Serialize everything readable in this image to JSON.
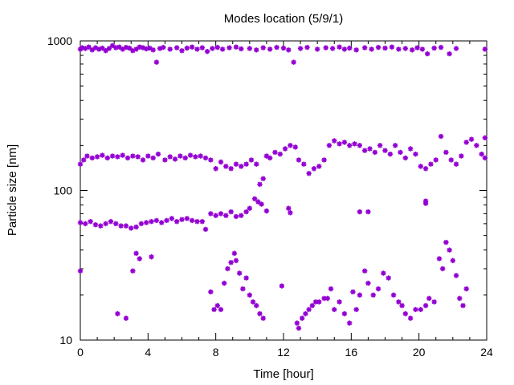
{
  "chart_data": {
    "type": "scatter",
    "title": "Modes location (5/9/1)",
    "xlabel": "Time [hour]",
    "ylabel": "Particle size [nm]",
    "xlim": [
      0,
      24
    ],
    "ylim": [
      10,
      1000
    ],
    "yscale": "log",
    "grid": false,
    "marker_color": "#9400d3",
    "marker": "asterisk",
    "xticks": [
      0,
      4,
      8,
      12,
      16,
      20,
      24
    ],
    "yticks": [
      10,
      100,
      1000
    ],
    "mode_bands": [
      {
        "x": [
          0,
          24
        ],
        "y": [
          880,
          720
        ]
      },
      {
        "x": [
          0,
          24
        ],
        "y": [
          165,
          190
        ]
      },
      {
        "x": [
          0,
          10.6
        ],
        "y": [
          61,
          82
        ]
      },
      {
        "x": [
          7.7,
          24
        ],
        "y": [
          13,
          40
        ]
      }
    ],
    "series": [
      {
        "values_note": "",
        "points": [
          [
            0.0,
            880
          ],
          [
            0.1,
            900
          ],
          [
            0.3,
            890
          ],
          [
            0.5,
            910
          ],
          [
            0.7,
            870
          ],
          [
            0.9,
            900
          ],
          [
            1.1,
            880
          ],
          [
            1.3,
            895
          ],
          [
            1.5,
            860
          ],
          [
            1.7,
            890
          ],
          [
            1.9,
            930
          ],
          [
            2.1,
            900
          ],
          [
            2.3,
            910
          ],
          [
            2.5,
            880
          ],
          [
            2.7,
            905
          ],
          [
            2.9,
            895
          ],
          [
            3.1,
            860
          ],
          [
            3.3,
            880
          ],
          [
            3.5,
            910
          ],
          [
            3.7,
            900
          ],
          [
            3.9,
            885
          ],
          [
            4.1,
            895
          ],
          [
            4.3,
            870
          ],
          [
            4.5,
            720
          ],
          [
            4.7,
            890
          ],
          [
            4.9,
            905
          ],
          [
            5.3,
            880
          ],
          [
            5.7,
            900
          ],
          [
            6.0,
            860
          ],
          [
            6.3,
            895
          ],
          [
            6.6,
            910
          ],
          [
            6.9,
            880
          ],
          [
            7.2,
            900
          ],
          [
            7.5,
            850
          ],
          [
            7.8,
            890
          ],
          [
            8.1,
            905
          ],
          [
            8.4,
            880
          ],
          [
            8.8,
            900
          ],
          [
            9.2,
            910
          ],
          [
            9.5,
            885
          ],
          [
            10.0,
            890
          ],
          [
            10.4,
            870
          ],
          [
            10.8,
            900
          ],
          [
            11.2,
            880
          ],
          [
            11.6,
            905
          ],
          [
            12.0,
            895
          ],
          [
            12.3,
            870
          ],
          [
            12.6,
            720
          ],
          [
            13.0,
            890
          ],
          [
            13.4,
            905
          ],
          [
            14.0,
            880
          ],
          [
            14.5,
            900
          ],
          [
            14.9,
            890
          ],
          [
            15.3,
            910
          ],
          [
            15.6,
            880
          ],
          [
            15.9,
            895
          ],
          [
            16.3,
            870
          ],
          [
            16.8,
            900
          ],
          [
            17.2,
            880
          ],
          [
            17.6,
            905
          ],
          [
            18.0,
            895
          ],
          [
            18.4,
            910
          ],
          [
            18.8,
            880
          ],
          [
            19.2,
            890
          ],
          [
            19.6,
            870
          ],
          [
            19.9,
            900
          ],
          [
            20.2,
            880
          ],
          [
            20.5,
            820
          ],
          [
            20.9,
            895
          ],
          [
            21.3,
            905
          ],
          [
            21.8,
            820
          ],
          [
            22.2,
            890
          ],
          [
            23.9,
            880
          ],
          [
            0.0,
            150
          ],
          [
            0.2,
            160
          ],
          [
            0.4,
            170
          ],
          [
            0.7,
            165
          ],
          [
            1.0,
            168
          ],
          [
            1.3,
            172
          ],
          [
            1.6,
            165
          ],
          [
            1.9,
            170
          ],
          [
            2.2,
            168
          ],
          [
            2.5,
            172
          ],
          [
            2.8,
            165
          ],
          [
            3.1,
            170
          ],
          [
            3.4,
            168
          ],
          [
            3.7,
            160
          ],
          [
            4.0,
            170
          ],
          [
            4.3,
            165
          ],
          [
            4.6,
            175
          ],
          [
            5.0,
            160
          ],
          [
            5.3,
            168
          ],
          [
            5.6,
            162
          ],
          [
            5.9,
            170
          ],
          [
            6.2,
            165
          ],
          [
            6.5,
            172
          ],
          [
            6.8,
            168
          ],
          [
            7.1,
            170
          ],
          [
            7.4,
            165
          ],
          [
            7.7,
            160
          ],
          [
            8.0,
            140
          ],
          [
            8.3,
            155
          ],
          [
            8.6,
            145
          ],
          [
            8.9,
            140
          ],
          [
            9.2,
            150
          ],
          [
            9.5,
            145
          ],
          [
            9.8,
            150
          ],
          [
            10.1,
            160
          ],
          [
            10.4,
            150
          ],
          [
            10.6,
            110
          ],
          [
            10.8,
            120
          ],
          [
            11.0,
            170
          ],
          [
            11.2,
            165
          ],
          [
            11.5,
            180
          ],
          [
            11.8,
            175
          ],
          [
            12.1,
            190
          ],
          [
            12.4,
            200
          ],
          [
            12.7,
            195
          ],
          [
            12.9,
            160
          ],
          [
            13.2,
            150
          ],
          [
            13.5,
            130
          ],
          [
            13.8,
            140
          ],
          [
            14.1,
            145
          ],
          [
            14.4,
            160
          ],
          [
            14.7,
            200
          ],
          [
            15.0,
            215
          ],
          [
            15.3,
            205
          ],
          [
            15.6,
            210
          ],
          [
            15.9,
            200
          ],
          [
            16.2,
            205
          ],
          [
            16.5,
            200
          ],
          [
            16.8,
            185
          ],
          [
            17.1,
            190
          ],
          [
            17.4,
            180
          ],
          [
            17.7,
            200
          ],
          [
            18.0,
            185
          ],
          [
            18.3,
            175
          ],
          [
            18.6,
            200
          ],
          [
            18.9,
            180
          ],
          [
            19.2,
            165
          ],
          [
            19.5,
            190
          ],
          [
            19.8,
            175
          ],
          [
            20.1,
            145
          ],
          [
            20.4,
            140
          ],
          [
            20.7,
            150
          ],
          [
            21.0,
            160
          ],
          [
            21.3,
            230
          ],
          [
            21.6,
            180
          ],
          [
            21.9,
            160
          ],
          [
            22.2,
            150
          ],
          [
            22.5,
            170
          ],
          [
            22.8,
            210
          ],
          [
            23.1,
            220
          ],
          [
            23.4,
            200
          ],
          [
            23.7,
            175
          ],
          [
            23.9,
            225
          ],
          [
            23.9,
            165
          ],
          [
            0.0,
            61
          ],
          [
            0.3,
            60
          ],
          [
            0.6,
            62
          ],
          [
            0.9,
            59
          ],
          [
            1.2,
            58
          ],
          [
            1.5,
            60
          ],
          [
            1.8,
            62
          ],
          [
            2.1,
            60
          ],
          [
            2.4,
            58
          ],
          [
            2.7,
            58
          ],
          [
            3.0,
            56
          ],
          [
            3.3,
            57
          ],
          [
            3.6,
            60
          ],
          [
            3.9,
            61
          ],
          [
            4.2,
            62
          ],
          [
            4.5,
            63
          ],
          [
            4.8,
            61
          ],
          [
            5.1,
            63
          ],
          [
            5.4,
            65
          ],
          [
            5.7,
            62
          ],
          [
            6.0,
            64
          ],
          [
            6.3,
            65
          ],
          [
            6.6,
            63
          ],
          [
            6.9,
            62
          ],
          [
            7.2,
            62
          ],
          [
            7.4,
            55
          ],
          [
            7.7,
            70
          ],
          [
            8.0,
            68
          ],
          [
            8.3,
            70
          ],
          [
            8.6,
            68
          ],
          [
            8.9,
            72
          ],
          [
            9.2,
            67
          ],
          [
            9.5,
            68
          ],
          [
            9.8,
            72
          ],
          [
            10.0,
            76
          ],
          [
            10.3,
            88
          ],
          [
            10.5,
            84
          ],
          [
            10.7,
            81
          ],
          [
            11.0,
            73
          ],
          [
            12.3,
            76
          ],
          [
            12.4,
            71
          ],
          [
            16.5,
            72
          ],
          [
            17.0,
            72
          ],
          [
            20.4,
            85
          ],
          [
            20.4,
            82
          ]
        ]
      },
      {
        "points": [
          [
            0.0,
            29
          ],
          [
            2.2,
            15
          ],
          [
            2.7,
            14
          ],
          [
            3.1,
            29
          ],
          [
            3.3,
            38
          ],
          [
            3.5,
            35
          ],
          [
            4.2,
            36
          ],
          [
            7.7,
            21
          ],
          [
            7.9,
            16
          ],
          [
            8.1,
            17
          ],
          [
            8.3,
            16
          ],
          [
            8.5,
            24
          ],
          [
            8.7,
            30
          ],
          [
            8.9,
            33
          ],
          [
            9.1,
            38
          ],
          [
            9.2,
            34
          ],
          [
            9.4,
            28
          ],
          [
            9.6,
            22
          ],
          [
            9.8,
            26
          ],
          [
            10.0,
            20
          ],
          [
            10.2,
            18
          ],
          [
            10.4,
            17
          ],
          [
            10.6,
            15
          ],
          [
            10.8,
            14
          ],
          [
            11.9,
            23
          ],
          [
            12.8,
            13
          ],
          [
            12.9,
            12
          ],
          [
            13.1,
            14
          ],
          [
            13.3,
            15
          ],
          [
            13.5,
            16
          ],
          [
            13.7,
            17
          ],
          [
            13.9,
            18
          ],
          [
            14.1,
            18
          ],
          [
            14.4,
            19
          ],
          [
            14.6,
            19
          ],
          [
            14.8,
            22
          ],
          [
            15.0,
            16
          ],
          [
            15.3,
            18
          ],
          [
            15.6,
            15
          ],
          [
            15.9,
            13
          ],
          [
            16.1,
            21
          ],
          [
            16.3,
            16
          ],
          [
            16.5,
            20
          ],
          [
            16.8,
            29
          ],
          [
            17.0,
            24
          ],
          [
            17.3,
            20
          ],
          [
            17.6,
            22
          ],
          [
            17.9,
            28
          ],
          [
            18.2,
            26
          ],
          [
            18.5,
            20
          ],
          [
            18.8,
            18
          ],
          [
            19.0,
            17
          ],
          [
            19.2,
            15
          ],
          [
            19.5,
            14
          ],
          [
            19.8,
            16
          ],
          [
            20.1,
            16
          ],
          [
            20.4,
            17
          ],
          [
            20.6,
            19
          ],
          [
            20.9,
            18
          ],
          [
            21.2,
            35
          ],
          [
            21.4,
            30
          ],
          [
            21.6,
            45
          ],
          [
            21.8,
            40
          ],
          [
            22.0,
            34
          ],
          [
            22.2,
            27
          ],
          [
            22.4,
            19
          ],
          [
            22.6,
            17
          ],
          [
            22.8,
            22
          ]
        ]
      }
    ]
  }
}
